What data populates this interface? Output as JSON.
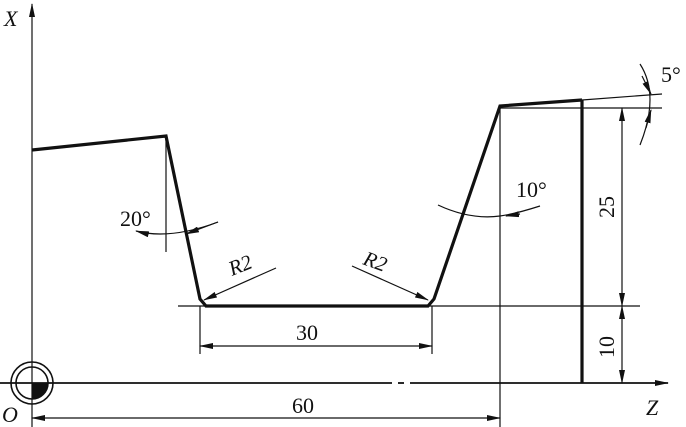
{
  "axes": {
    "x_label": "X",
    "z_label": "Z",
    "origin_label": "O"
  },
  "dimensions": {
    "bottom_width": "30",
    "overall_length": "60",
    "step_height": "25",
    "base_height": "10",
    "left_angle": "20°",
    "right_angle": "10°",
    "top_angle": "5°",
    "left_radius": "R2",
    "right_radius": "R2"
  },
  "colors": {
    "line": "#111111",
    "background": "#ffffff"
  }
}
